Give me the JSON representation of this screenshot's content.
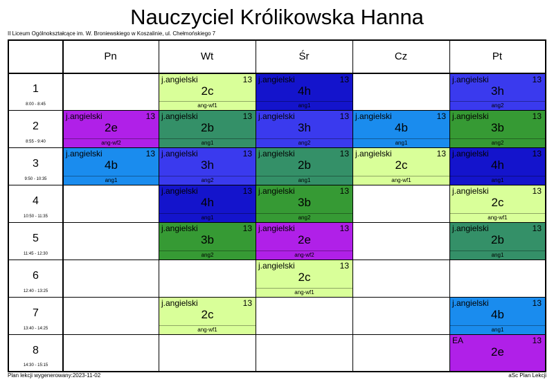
{
  "title": "Nauczyciel Królikowska Hanna",
  "school": "II Liceum Ogólnokształcące im. W. Broniewskiego w Koszalinie, ul. Chełmońskiego 7",
  "footer_left": "Plan lekcji wygenerowany:2023-11-02",
  "footer_right": "aSc Plan Lekcji",
  "days": [
    "Pn",
    "Wt",
    "Śr",
    "Cz",
    "Pt"
  ],
  "periods": [
    {
      "num": "1",
      "time": "8:00 - 8:45"
    },
    {
      "num": "2",
      "time": "8:55 - 9:40"
    },
    {
      "num": "3",
      "time": "9:50 - 10:35"
    },
    {
      "num": "4",
      "time": "10:50 - 11:35"
    },
    {
      "num": "5",
      "time": "11:45 - 12:30"
    },
    {
      "num": "6",
      "time": "12:40 - 13:25"
    },
    {
      "num": "7",
      "time": "13:40 - 14:25"
    },
    {
      "num": "8",
      "time": "14:30 - 15:15"
    }
  ],
  "colors": {
    "2c": "#d9ff99",
    "4h": "#1414cc",
    "3h": "#3a3aee",
    "2e": "#b020e8",
    "2b": "#349068",
    "3b": "#369a34",
    "4b": "#1a8cee"
  },
  "lessons": [
    {
      "day": 1,
      "period": 0,
      "subject": "j.angielski",
      "room": "13",
      "class": "2c",
      "group": "ang-wf1"
    },
    {
      "day": 2,
      "period": 0,
      "subject": "j.angielski",
      "room": "13",
      "class": "4h",
      "group": "ang1"
    },
    {
      "day": 4,
      "period": 0,
      "subject": "j.angielski",
      "room": "13",
      "class": "3h",
      "group": "ang2"
    },
    {
      "day": 0,
      "period": 1,
      "subject": "j.angielski",
      "room": "13",
      "class": "2e",
      "group": "ang-wf2"
    },
    {
      "day": 1,
      "period": 1,
      "subject": "j.angielski",
      "room": "13",
      "class": "2b",
      "group": "ang1"
    },
    {
      "day": 2,
      "period": 1,
      "subject": "j.angielski",
      "room": "13",
      "class": "3h",
      "group": "ang2"
    },
    {
      "day": 3,
      "period": 1,
      "subject": "j.angielski",
      "room": "13",
      "class": "4b",
      "group": "ang1"
    },
    {
      "day": 4,
      "period": 1,
      "subject": "j.angielski",
      "room": "13",
      "class": "3b",
      "group": "ang2"
    },
    {
      "day": 0,
      "period": 2,
      "subject": "j.angielski",
      "room": "13",
      "class": "4b",
      "group": "ang1"
    },
    {
      "day": 1,
      "period": 2,
      "subject": "j.angielski",
      "room": "13",
      "class": "3h",
      "group": "ang2"
    },
    {
      "day": 2,
      "period": 2,
      "subject": "j.angielski",
      "room": "13",
      "class": "2b",
      "group": "ang1"
    },
    {
      "day": 3,
      "period": 2,
      "subject": "j.angielski",
      "room": "13",
      "class": "2c",
      "group": "ang-wf1"
    },
    {
      "day": 4,
      "period": 2,
      "subject": "j.angielski",
      "room": "13",
      "class": "4h",
      "group": "ang1"
    },
    {
      "day": 1,
      "period": 3,
      "subject": "j.angielski",
      "room": "13",
      "class": "4h",
      "group": "ang1"
    },
    {
      "day": 2,
      "period": 3,
      "subject": "j.angielski",
      "room": "13",
      "class": "3b",
      "group": "ang2"
    },
    {
      "day": 4,
      "period": 3,
      "subject": "j.angielski",
      "room": "13",
      "class": "2c",
      "group": "ang-wf1"
    },
    {
      "day": 1,
      "period": 4,
      "subject": "j.angielski",
      "room": "13",
      "class": "3b",
      "group": "ang2"
    },
    {
      "day": 2,
      "period": 4,
      "subject": "j.angielski",
      "room": "13",
      "class": "2e",
      "group": "ang-wf2"
    },
    {
      "day": 4,
      "period": 4,
      "subject": "j.angielski",
      "room": "13",
      "class": "2b",
      "group": "ang1"
    },
    {
      "day": 2,
      "period": 5,
      "subject": "j.angielski",
      "room": "13",
      "class": "2c",
      "group": "ang-wf1"
    },
    {
      "day": 1,
      "period": 6,
      "subject": "j.angielski",
      "room": "13",
      "class": "2c",
      "group": "ang-wf1"
    },
    {
      "day": 4,
      "period": 6,
      "subject": "j.angielski",
      "room": "13",
      "class": "4b",
      "group": "ang1"
    },
    {
      "day": 4,
      "period": 7,
      "subject": "EA",
      "room": "13",
      "class": "2e",
      "group": ""
    }
  ]
}
